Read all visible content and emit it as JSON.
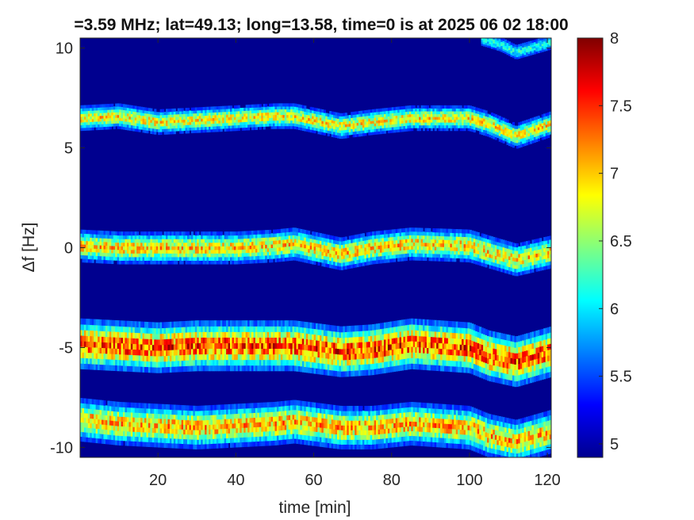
{
  "chart_data": {
    "type": "heatmap",
    "title": "=3.59 MHz;  lat=49.13; long=13.58, time=0 is at 2025 06 02 18:00",
    "xlabel": "time [min]",
    "ylabel": "Δf [Hz]",
    "xlim": [
      0,
      121
    ],
    "ylim": [
      -10.5,
      10.5
    ],
    "xticks": [
      20,
      40,
      60,
      80,
      100,
      120
    ],
    "xtick_labels": [
      "20",
      "40",
      "60",
      "80",
      "100",
      "120"
    ],
    "yticks": [
      -10,
      -5,
      0,
      5,
      10
    ],
    "ytick_labels": [
      "-10",
      "-5",
      "0",
      "5",
      "10"
    ],
    "colorbar": {
      "min": 4.9,
      "max": 8,
      "ticks": [
        5,
        5.5,
        6,
        6.5,
        7,
        7.5,
        8
      ],
      "tick_labels": [
        "5",
        "5.5",
        "6",
        "6.5",
        "7",
        "7.5",
        "8"
      ],
      "colormap": "jet"
    },
    "traces": [
      {
        "peak": 7.0,
        "width_hz": 0.35,
        "points": [
          [
            0,
            6.5
          ],
          [
            10,
            6.6
          ],
          [
            20,
            6.3
          ],
          [
            30,
            6.4
          ],
          [
            40,
            6.5
          ],
          [
            50,
            6.6
          ],
          [
            55,
            6.6
          ],
          [
            67,
            6.1
          ],
          [
            75,
            6.3
          ],
          [
            85,
            6.5
          ],
          [
            100,
            6.5
          ],
          [
            105,
            6.2
          ],
          [
            112,
            5.6
          ],
          [
            121,
            6.2
          ]
        ]
      },
      {
        "peak": 7.1,
        "width_hz": 0.45,
        "points": [
          [
            0,
            0.1
          ],
          [
            10,
            0.0
          ],
          [
            20,
            0.0
          ],
          [
            30,
            0.0
          ],
          [
            40,
            0.0
          ],
          [
            50,
            0.1
          ],
          [
            55,
            0.2
          ],
          [
            67,
            -0.3
          ],
          [
            75,
            0.0
          ],
          [
            85,
            0.2
          ],
          [
            100,
            0.1
          ],
          [
            105,
            -0.2
          ],
          [
            112,
            -0.6
          ],
          [
            121,
            -0.2
          ]
        ]
      },
      {
        "peak": 7.6,
        "width_hz": 0.7,
        "points": [
          [
            0,
            -4.8
          ],
          [
            10,
            -4.9
          ],
          [
            20,
            -5.0
          ],
          [
            30,
            -4.9
          ],
          [
            40,
            -4.9
          ],
          [
            50,
            -4.9
          ],
          [
            55,
            -4.9
          ],
          [
            67,
            -5.2
          ],
          [
            75,
            -5.1
          ],
          [
            85,
            -4.8
          ],
          [
            100,
            -5.0
          ],
          [
            105,
            -5.4
          ],
          [
            112,
            -5.7
          ],
          [
            121,
            -5.2
          ]
        ]
      },
      {
        "peak": 7.2,
        "width_hz": 0.6,
        "points": [
          [
            0,
            -8.6
          ],
          [
            10,
            -8.8
          ],
          [
            20,
            -8.9
          ],
          [
            30,
            -9.0
          ],
          [
            40,
            -8.9
          ],
          [
            50,
            -8.8
          ],
          [
            55,
            -8.7
          ],
          [
            67,
            -9.0
          ],
          [
            75,
            -9.0
          ],
          [
            85,
            -8.8
          ],
          [
            100,
            -9.0
          ],
          [
            105,
            -9.4
          ],
          [
            112,
            -9.7
          ],
          [
            121,
            -9.2
          ]
        ]
      },
      {
        "peak": 6.2,
        "width_hz": 0.25,
        "points": [
          [
            103,
            10.5
          ],
          [
            108,
            10.2
          ],
          [
            112,
            9.8
          ],
          [
            121,
            10.3
          ]
        ]
      }
    ]
  }
}
